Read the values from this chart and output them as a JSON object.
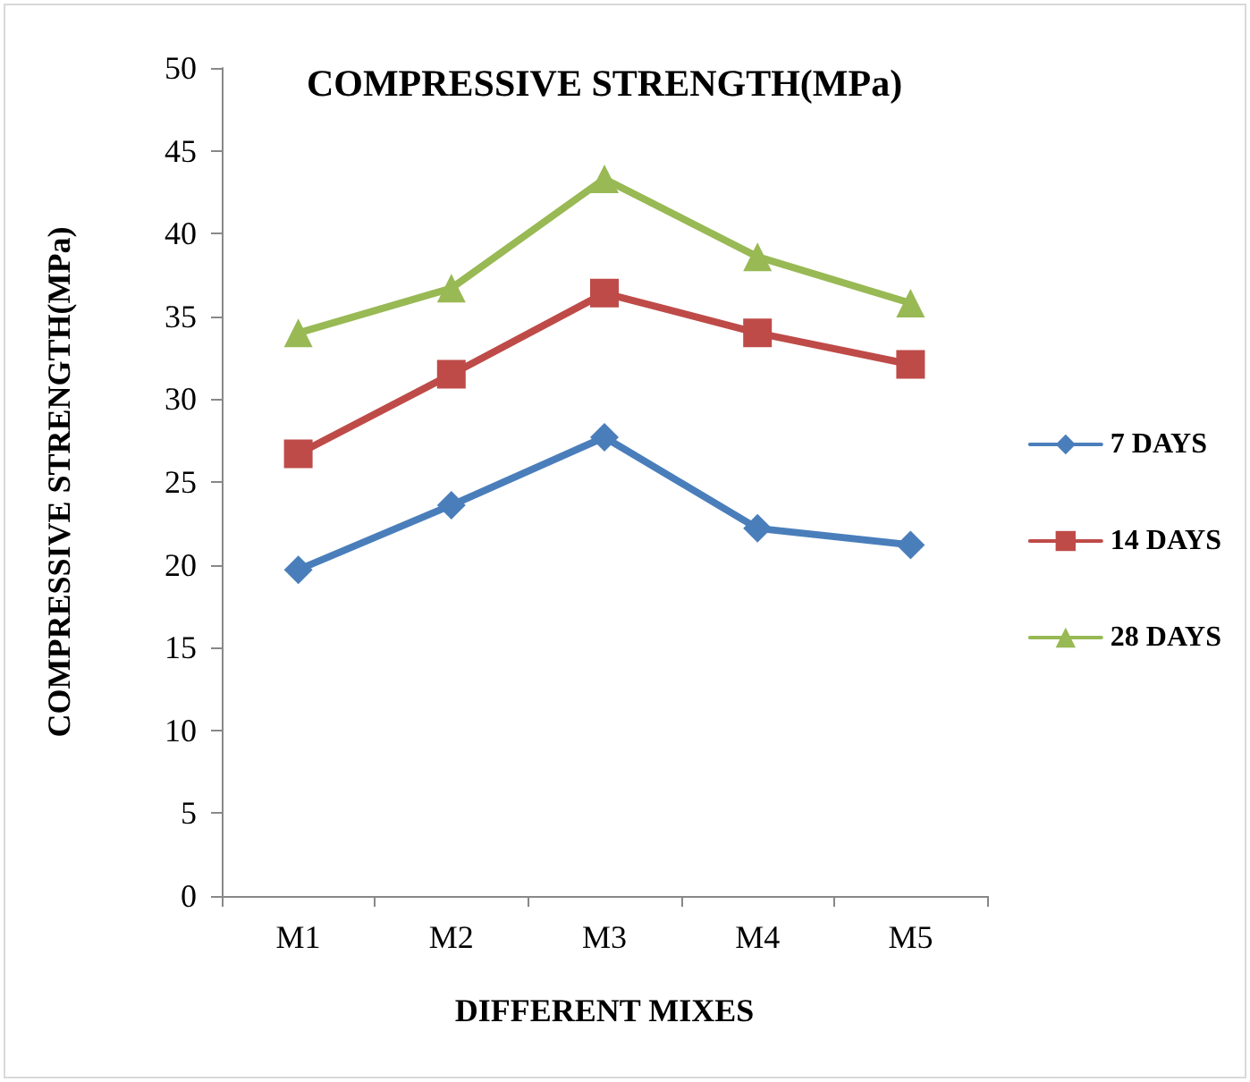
{
  "chart_data": {
    "type": "line",
    "title": "COMPRESSIVE STRENGTH(MPa)",
    "xlabel": "DIFFERENT MIXES",
    "ylabel": "COMPRESSIVE STRENGTH(MPa)",
    "categories": [
      "M1",
      "M2",
      "M3",
      "M4",
      "M5"
    ],
    "series": [
      {
        "name": "7 DAYS",
        "color": "#4a7ebb",
        "marker": "diamond",
        "values": [
          19.7,
          23.6,
          27.7,
          22.2,
          21.2
        ]
      },
      {
        "name": "14 DAYS",
        "color": "#be4b48",
        "marker": "square",
        "values": [
          26.7,
          31.5,
          36.4,
          34.0,
          32.1
        ]
      },
      {
        "name": "28 DAYS",
        "color": "#98b954",
        "marker": "triangle",
        "values": [
          34.0,
          36.7,
          43.3,
          38.6,
          35.8
        ]
      }
    ],
    "ylim": [
      0,
      50
    ],
    "yticks": [
      0,
      5,
      10,
      15,
      20,
      25,
      30,
      35,
      40,
      45,
      50
    ],
    "grid": false,
    "legend": "right",
    "line_style": "solid"
  }
}
